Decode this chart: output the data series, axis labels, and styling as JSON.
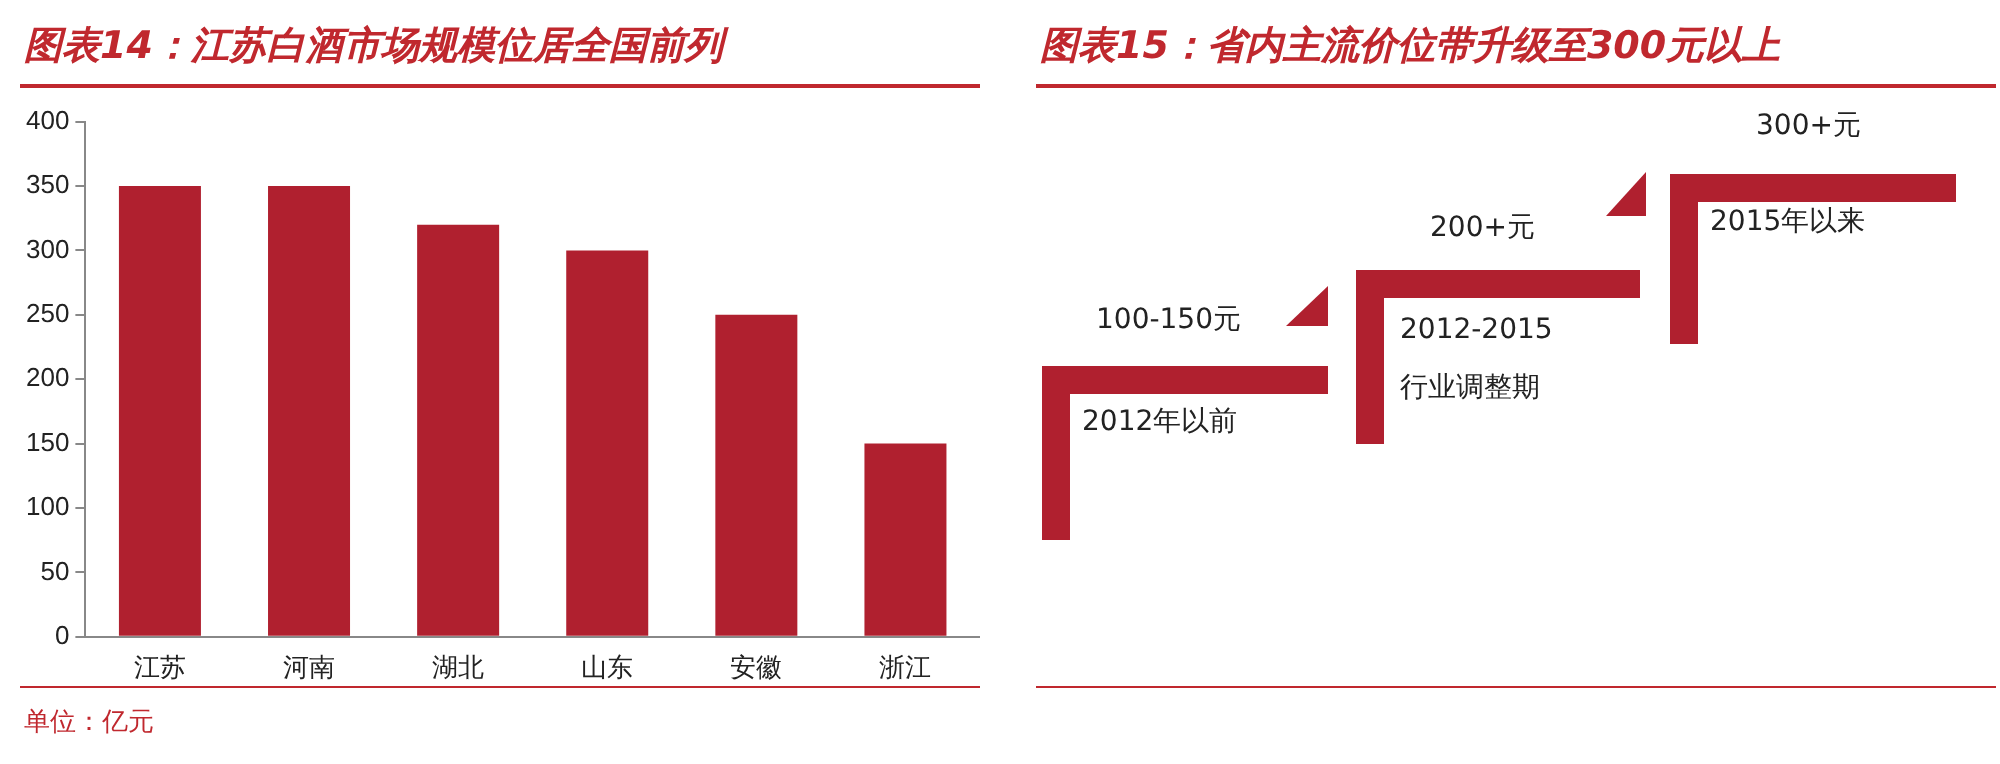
{
  "chart_data": [
    {
      "type": "bar",
      "title": "图表14：江苏白酒市场规模位居全国前列",
      "categories": [
        "江苏",
        "河南",
        "湖北",
        "山东",
        "安徽",
        "浙江"
      ],
      "values": [
        350,
        350,
        320,
        300,
        250,
        150
      ],
      "color": "#b0202f",
      "ylim": [
        0,
        400
      ],
      "yticks": [
        0,
        50,
        100,
        150,
        200,
        250,
        300,
        350,
        400
      ],
      "grid": false,
      "legend": false,
      "annotations": [
        "单位：亿元"
      ]
    },
    {
      "type": "other",
      "title": "图表15：省内主流价位带升级至300元以上",
      "annotations": [
        "100-150元",
        "2012年以前",
        "200+元",
        "2012-2015",
        "行业调整期",
        "300+元",
        "2015年以来"
      ]
    }
  ]
}
